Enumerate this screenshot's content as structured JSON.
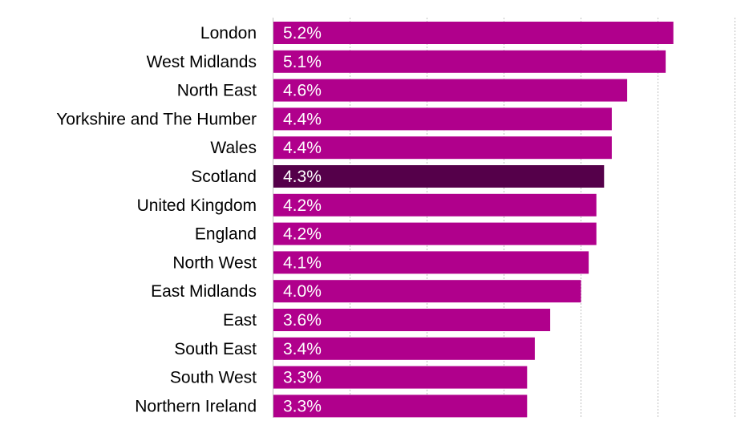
{
  "chart_data": {
    "type": "bar",
    "orientation": "horizontal",
    "categories": [
      "London",
      "West Midlands",
      "North East",
      "Yorkshire and The Humber",
      "Wales",
      "Scotland",
      "United Kingdom",
      "England",
      "North West ",
      "East Midlands",
      "East",
      "South East",
      "South West",
      "Northern Ireland "
    ],
    "values": [
      5.2,
      5.1,
      4.6,
      4.4,
      4.4,
      4.3,
      4.2,
      4.2,
      4.1,
      4.0,
      3.6,
      3.4,
      3.3,
      3.3
    ],
    "value_labels": [
      "5.2%",
      "5.1%",
      "4.6%",
      "4.4%",
      "4.4%",
      "4.3%",
      "4.2%",
      "4.2%",
      "4.1%",
      "4.0%",
      "3.6%",
      "3.4%",
      "3.3%",
      "3.3%"
    ],
    "highlight_category": "Scotland",
    "colors": {
      "bar": "#b0008c",
      "highlight": "#55004a",
      "grid": "#bfbfbf"
    },
    "xlim": [
      0,
      6
    ],
    "grid": true,
    "title": "",
    "xlabel": "",
    "ylabel": ""
  }
}
